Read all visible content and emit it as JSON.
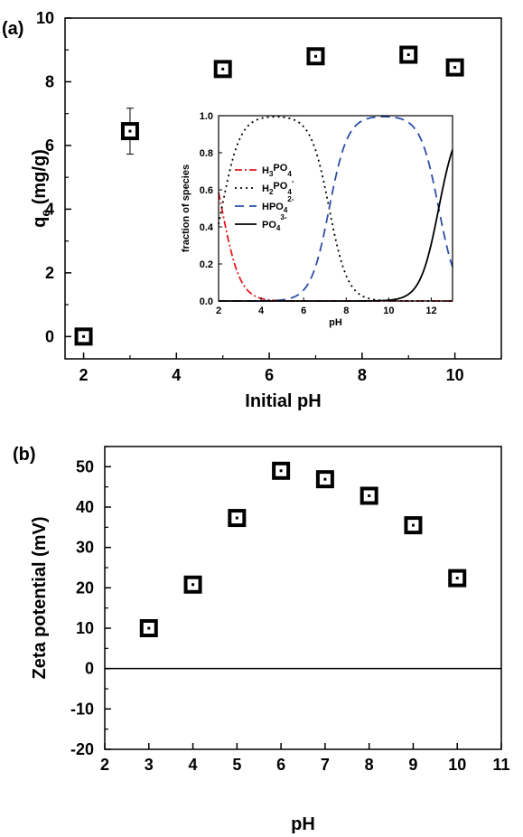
{
  "chart_data": [
    {
      "panel_label": "(a)",
      "type": "scatter",
      "xlabel": "Initial pH",
      "ylabel_main": "q",
      "ylabel_sub": "e",
      "ylabel_unit": " (mg/g)",
      "xlim": [
        1.6,
        11
      ],
      "ylim": [
        -0.7,
        10
      ],
      "xticks": [
        2,
        4,
        6,
        8,
        10
      ],
      "yticks": [
        0,
        2,
        4,
        6,
        8,
        10
      ],
      "grid": false,
      "marker": "open-square",
      "series": [
        {
          "x": [
            2,
            3,
            5,
            7,
            9,
            10
          ],
          "y": [
            0.0,
            6.45,
            8.4,
            8.8,
            8.85,
            8.45
          ],
          "error": [
            0.05,
            0.72,
            0.1,
            0.1,
            0.1,
            0.1
          ]
        }
      ],
      "inset": {
        "type": "line",
        "xlabel": "pH",
        "ylabel": "fraction of species",
        "xlim": [
          2,
          13
        ],
        "ylim": [
          0,
          1.0
        ],
        "xticks": [
          2,
          4,
          6,
          8,
          10,
          12
        ],
        "yticks": [
          "0.0",
          "0.2",
          "0.4",
          "0.6",
          "0.8",
          "1.0"
        ],
        "legend_position": "left",
        "pKa": [
          2.15,
          7.2,
          12.35
        ],
        "series": [
          {
            "base": "H",
            "sub": "3",
            "mid": "PO",
            "sub2": "4",
            "sup": "",
            "color": "#e41a1c",
            "dash": "8,3,2,3"
          },
          {
            "base": "H",
            "sub": "2",
            "mid": "PO",
            "sub2": "4",
            "sup": "-",
            "color": "#000000",
            "dash": "2,4"
          },
          {
            "base": "HPO",
            "sub": "4",
            "mid": "",
            "sub2": "",
            "sup": "2-",
            "color": "#2b4fa8",
            "dash": "10,6"
          },
          {
            "base": "PO",
            "sub": "4",
            "mid": "",
            "sub2": "",
            "sup": "3-",
            "color": "#000000",
            "dash": ""
          }
        ]
      }
    },
    {
      "panel_label": "(b)",
      "type": "scatter",
      "xlabel": "pH",
      "ylabel": "Zeta potential (mV)",
      "xlim": [
        2,
        11
      ],
      "ylim": [
        -20,
        55
      ],
      "xticks": [
        2,
        3,
        4,
        5,
        6,
        7,
        8,
        9,
        10,
        11
      ],
      "yticks": [
        -20,
        -10,
        0,
        10,
        20,
        30,
        40,
        50
      ],
      "zero_line": true,
      "grid": false,
      "marker": "open-square",
      "series": [
        {
          "x": [
            3,
            4,
            5,
            6,
            7,
            8,
            9,
            10
          ],
          "y": [
            10,
            20.8,
            37.3,
            49,
            46.9,
            42.8,
            35.5,
            22.4
          ],
          "error": [
            0.5,
            0.5,
            0.6,
            1.2,
            0.6,
            0.5,
            0.6,
            0.7
          ]
        }
      ]
    }
  ]
}
